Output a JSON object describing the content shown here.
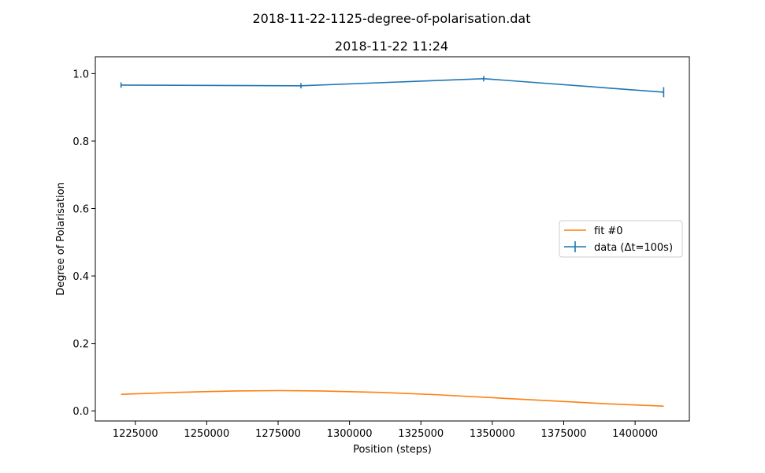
{
  "chart_data": {
    "type": "line",
    "suptitle": "2018-11-22-1125-degree-of-polarisation.dat",
    "title": "2018-11-22 11:24",
    "xlabel": "Position (steps)",
    "ylabel": "Degree of Polarisation",
    "xlim": [
      1211000,
      1419000
    ],
    "ylim": [
      -0.03,
      1.05
    ],
    "x_ticks": [
      1225000,
      1250000,
      1275000,
      1300000,
      1325000,
      1350000,
      1375000,
      1400000
    ],
    "y_ticks": [
      0.0,
      0.2,
      0.4,
      0.6,
      0.8,
      1.0
    ],
    "y_tick_labels": [
      "0.0",
      "0.2",
      "0.4",
      "0.6",
      "0.8",
      "1.0"
    ],
    "grid": false,
    "legend_position": "center-right",
    "series": [
      {
        "name": "data (Δt=100s)",
        "color": "#1f77b4",
        "style": "errorbar",
        "x": [
          1220000,
          1283000,
          1347000,
          1410000
        ],
        "y": [
          0.966,
          0.964,
          0.985,
          0.945
        ],
        "yerr": [
          0.008,
          0.008,
          0.008,
          0.015
        ]
      },
      {
        "name": "fit #0",
        "color": "#ff7f0e",
        "style": "line",
        "x": [
          1220000,
          1240000,
          1260000,
          1275000,
          1290000,
          1310000,
          1330000,
          1350000,
          1370000,
          1390000,
          1410000
        ],
        "y": [
          0.049,
          0.055,
          0.059,
          0.06,
          0.059,
          0.055,
          0.048,
          0.039,
          0.03,
          0.021,
          0.014
        ]
      }
    ],
    "legend_order": [
      "fit #0",
      "data (Δt=100s)"
    ]
  }
}
